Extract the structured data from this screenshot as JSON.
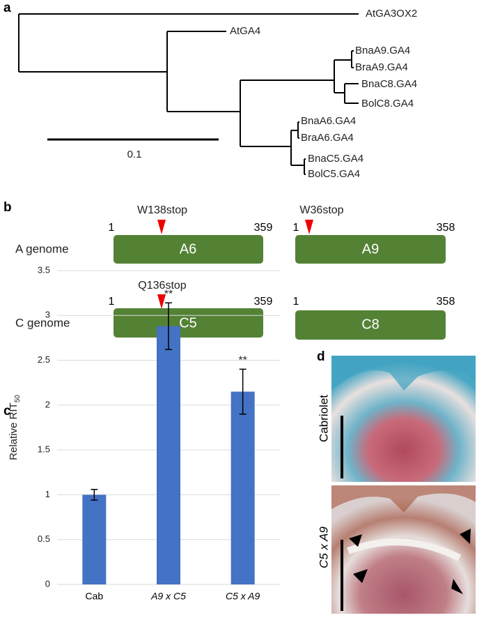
{
  "panel_labels": [
    "a",
    "b",
    "c",
    "d"
  ],
  "tree": {
    "leaves": [
      "AtGA3OX2",
      "AtGA4",
      "BnaA9.GA4",
      "BraA9.GA4",
      "BnaC8.GA4",
      "BolC8.GA4",
      "BnaA6.GA4",
      "BraA6.GA4",
      "BnaC5.GA4",
      "BolC5.GA4"
    ],
    "scale_label": "0.1"
  },
  "genes": {
    "rows": [
      "A genome",
      "C genome"
    ],
    "boxes": [
      {
        "name": "A6",
        "start": "1",
        "end": "359",
        "mutation": "W138stop"
      },
      {
        "name": "A9",
        "start": "1",
        "end": "358",
        "mutation": "W36stop"
      },
      {
        "name": "C5",
        "start": "1",
        "end": "359",
        "mutation": "Q136stop"
      },
      {
        "name": "C8",
        "start": "1",
        "end": "358"
      }
    ]
  },
  "chart_data": {
    "type": "bar",
    "ylabel": "Relative RIT",
    "ylabel_sub": "50",
    "categories": [
      "Cab",
      "A9 x C5",
      "C5 x A9"
    ],
    "category_style": [
      "normal",
      "italic",
      "italic"
    ],
    "values": [
      1.0,
      2.88,
      2.15
    ],
    "errors": [
      0.06,
      0.26,
      0.25
    ],
    "significance": [
      null,
      "**",
      "**"
    ],
    "color": "#4472c4",
    "ylim": [
      0,
      3.5
    ],
    "yticks": [
      0,
      0.5,
      1,
      1.5,
      2,
      2.5,
      3,
      3.5
    ],
    "grid": true
  },
  "micrographs": {
    "labels": [
      "Cabriolet",
      "C5 x A9"
    ]
  }
}
